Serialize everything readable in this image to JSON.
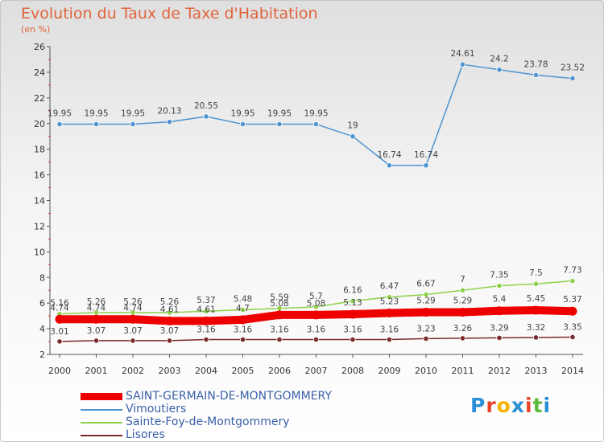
{
  "title": "Evolution du Taux de Taxe d'Habitation",
  "subtitle": "(en %)",
  "logo": {
    "text": "Proxiti",
    "colors": [
      "#2b8fd6",
      "#e8452a",
      "#f5b400",
      "#2b8fd6",
      "#e8452a",
      "#5bbb3a",
      "#2b8fd6"
    ]
  },
  "chart_data": {
    "type": "line",
    "title": "Evolution du Taux de Taxe d'Habitation",
    "ylabel": "(en %)",
    "xlabel": "",
    "x": [
      "2000",
      "2001",
      "2002",
      "2003",
      "2004",
      "2005",
      "2006",
      "2007",
      "2008",
      "2009",
      "2010",
      "2011",
      "2012",
      "2013",
      "2014"
    ],
    "ylim": [
      2,
      26
    ],
    "yticks": [
      2,
      4,
      6,
      8,
      10,
      12,
      14,
      16,
      18,
      20,
      22,
      24,
      26
    ],
    "grid": false,
    "legend_position": "bottom",
    "series": [
      {
        "name": "SAINT-GERMAIN-DE-MONTGOMMERY",
        "color": "#ee0000",
        "thick": true,
        "values": [
          4.74,
          4.74,
          4.74,
          4.61,
          4.61,
          4.7,
          5.08,
          5.08,
          5.13,
          5.23,
          5.29,
          5.29,
          5.4,
          5.45,
          5.37
        ],
        "labels": [
          "4.74",
          "4.74",
          "4.74",
          "4.61",
          "4.61",
          "4.7",
          "5.08",
          "5.08",
          "5.13",
          "5.23",
          "5.29",
          "5.29",
          "5.4",
          "5.45",
          "5.37"
        ]
      },
      {
        "name": "Vimoutiers",
        "color": "#4f94cf",
        "values": [
          19.95,
          19.95,
          19.95,
          20.13,
          20.55,
          19.95,
          19.95,
          19.95,
          19,
          16.74,
          16.74,
          24.61,
          24.2,
          23.78,
          23.52
        ],
        "labels": [
          "19.95",
          "19.95",
          "19.95",
          "20.13",
          "20.55",
          "19.95",
          "19.95",
          "19.95",
          "19",
          "16.74",
          "16.74",
          "24.61",
          "24.2",
          "23.78",
          "23.52"
        ]
      },
      {
        "name": "Sainte-Foy-de-Montgommery",
        "color": "#8fd14a",
        "values": [
          5.16,
          5.26,
          5.26,
          5.26,
          5.37,
          5.48,
          5.59,
          5.7,
          6.16,
          6.47,
          6.67,
          7,
          7.35,
          7.5,
          7.73
        ],
        "labels": [
          "5.16",
          "5.26",
          "5.26",
          "5.26",
          "5.37",
          "5.48",
          "5.59",
          "5.7",
          "6.16",
          "6.47",
          "6.67",
          "7",
          "7.35",
          "7.5",
          "7.73"
        ]
      },
      {
        "name": "Lisores",
        "color": "#7a2a2a",
        "values": [
          3.01,
          3.07,
          3.07,
          3.07,
          3.16,
          3.16,
          3.16,
          3.16,
          3.16,
          3.16,
          3.23,
          3.26,
          3.29,
          3.32,
          3.35
        ],
        "labels": [
          "3.01",
          "3.07",
          "3.07",
          "3.07",
          "3.16",
          "3.16",
          "3.16",
          "3.16",
          "3.16",
          "3.16",
          "3.23",
          "3.26",
          "3.29",
          "3.32",
          "3.35"
        ]
      }
    ]
  }
}
